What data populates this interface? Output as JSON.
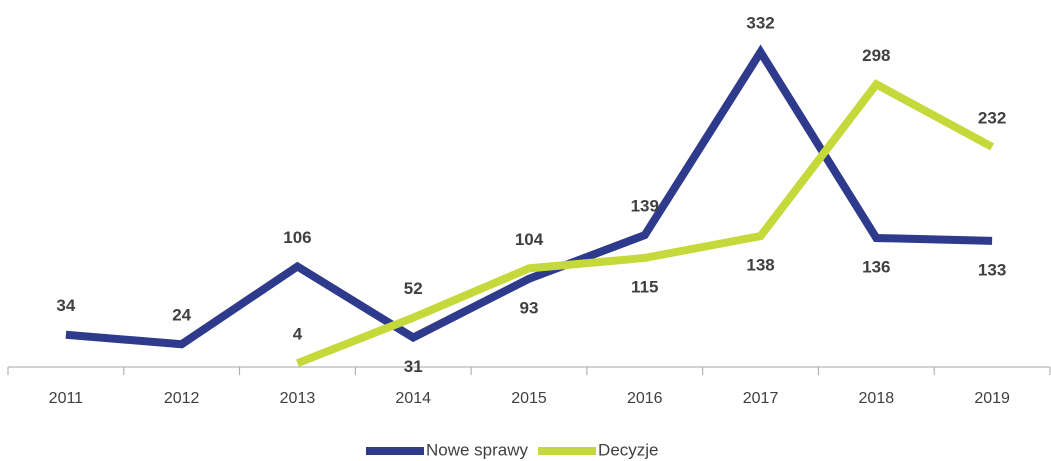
{
  "chart_data": {
    "type": "line",
    "categories": [
      "2011",
      "2012",
      "2013",
      "2014",
      "2015",
      "2016",
      "2017",
      "2018",
      "2019"
    ],
    "series": [
      {
        "name": "Nowe sprawy",
        "color": "#2e3a8c",
        "values": [
          34,
          24,
          106,
          31,
          93,
          139,
          332,
          136,
          133
        ]
      },
      {
        "name": "Decyzje",
        "color": "#c5d93a",
        "values": [
          null,
          null,
          4,
          52,
          104,
          115,
          138,
          298,
          232
        ]
      }
    ],
    "ylim": [
      0,
      350
    ],
    "grid": false,
    "legend": "bottom"
  }
}
